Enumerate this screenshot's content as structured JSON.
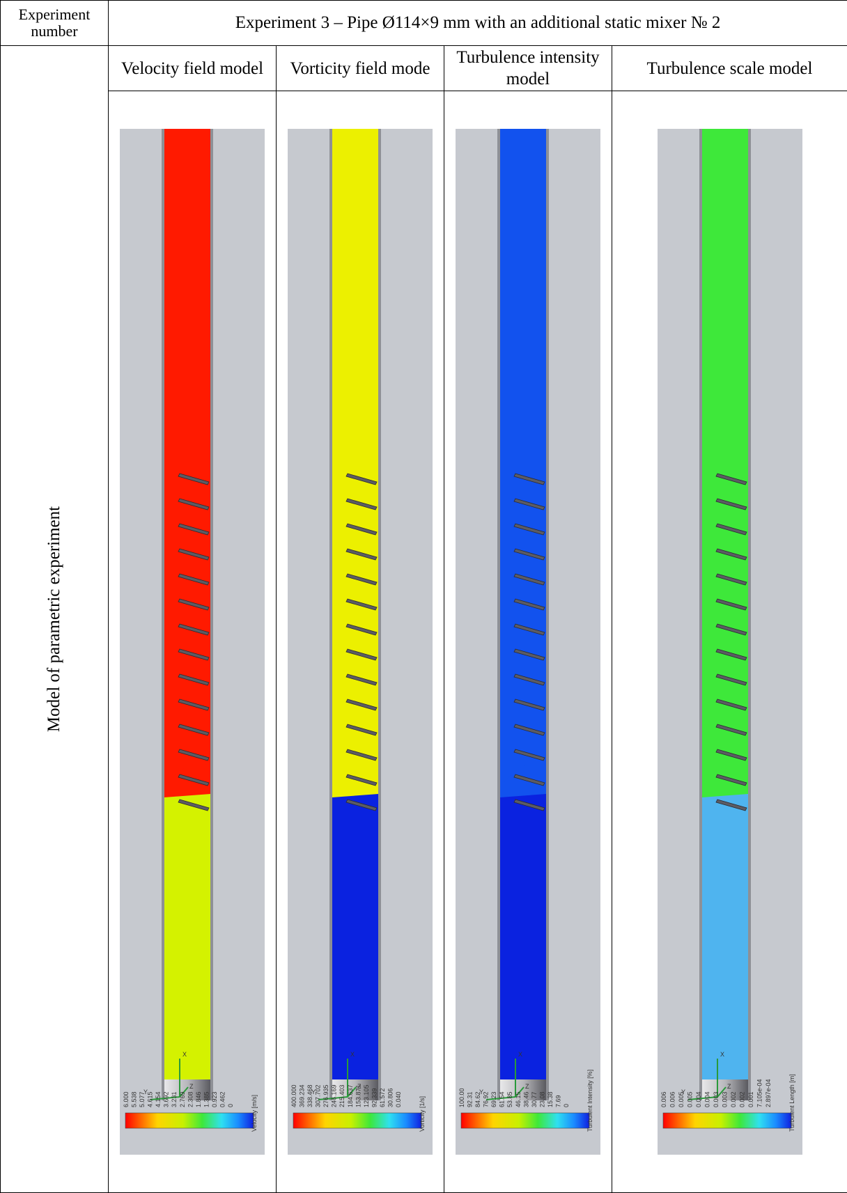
{
  "header": {
    "left_label": "Experiment number",
    "title": "Experiment 3 – Pipe Ø114×9 mm with an additional static mixer № 2"
  },
  "row_label": "Model  of parametric experiment",
  "columns": [
    "Velocity field model",
    "Vorticity field mode",
    "Turbulence intensity model",
    "Turbulence scale model"
  ],
  "panels": [
    {
      "legend_title": "Velocity [m/s]",
      "ticks": [
        "6.000",
        "5.538",
        "5.077",
        "4.615",
        "4.154",
        "3.692",
        "3.231",
        "2.769",
        "2.308",
        "1.846",
        "1.385",
        "0.923",
        "0.462",
        "0"
      ]
    },
    {
      "legend_title": "Vorticity [1/s]",
      "ticks": [
        "400.000",
        "369.234",
        "338.468",
        "307.702",
        "276.935",
        "246.169",
        "215.403",
        "184.637",
        "153.871",
        "123.105",
        "92.339",
        "61.572",
        "30.806",
        "0.040"
      ]
    },
    {
      "legend_title": "Turbulent Intensity [%]",
      "ticks": [
        "100.00",
        "92.31",
        "84.62",
        "76.92",
        "69.23",
        "61.54",
        "53.85",
        "46.15",
        "38.46",
        "30.77",
        "23.08",
        "15.38",
        "7.69",
        "0"
      ]
    },
    {
      "legend_title": "Turbulent Length [m]",
      "ticks": [
        "0.006",
        "0.006",
        "0.005",
        "0.005",
        "0.004",
        "0.004",
        "0.003",
        "0.003",
        "0.002",
        "0.002",
        "0.001",
        "7.105e-04",
        "2.897e-04"
      ]
    }
  ],
  "colors": {
    "red": "#ff1a00",
    "yellow": "#ecf000",
    "yellow_green": "#d4f200",
    "blue": "#0a22e0",
    "bright_blue": "#1252ee",
    "cyan": "#3fd8f4",
    "green": "#3ee83a",
    "light_blue": "#4fb4ef",
    "gray_bg": "#c6c9cf"
  },
  "axis_labels": {
    "x": "X",
    "y": "Y",
    "z": "Z"
  }
}
